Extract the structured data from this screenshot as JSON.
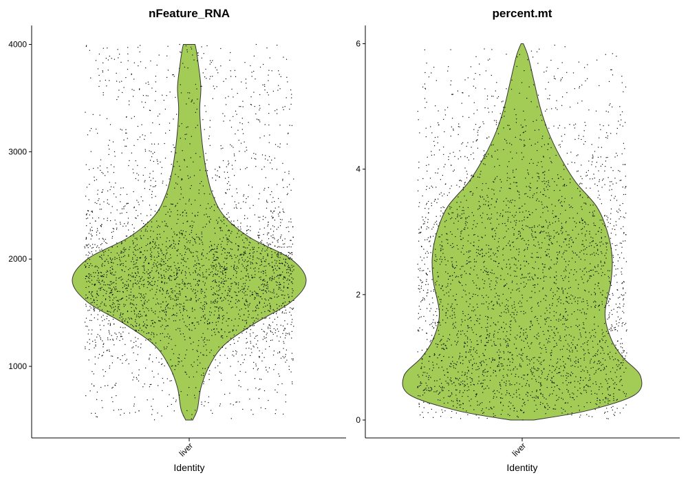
{
  "chart_data": [
    {
      "type": "violin",
      "title": "nFeature_RNA",
      "xlabel": "Identity",
      "ylabel": "",
      "categories": [
        "liver"
      ],
      "ylim": [
        500,
        4000
      ],
      "yticks": [
        1000,
        2000,
        3000,
        4000
      ],
      "ytick_labels": [
        "1000",
        "2000",
        "3000",
        "4000"
      ],
      "fill_color": "#a3cc57",
      "jitter_points": 3400,
      "density": [
        {
          "y": 500,
          "w": 0.03
        },
        {
          "y": 600,
          "w": 0.07
        },
        {
          "y": 800,
          "w": 0.1
        },
        {
          "y": 1000,
          "w": 0.17
        },
        {
          "y": 1200,
          "w": 0.3
        },
        {
          "y": 1400,
          "w": 0.56
        },
        {
          "y": 1600,
          "w": 0.87
        },
        {
          "y": 1800,
          "w": 1.0
        },
        {
          "y": 2000,
          "w": 0.87
        },
        {
          "y": 2200,
          "w": 0.52
        },
        {
          "y": 2400,
          "w": 0.3
        },
        {
          "y": 2600,
          "w": 0.2
        },
        {
          "y": 2800,
          "w": 0.15
        },
        {
          "y": 3000,
          "w": 0.12
        },
        {
          "y": 3200,
          "w": 0.1
        },
        {
          "y": 3400,
          "w": 0.09
        },
        {
          "y": 3600,
          "w": 0.1
        },
        {
          "y": 3800,
          "w": 0.08
        },
        {
          "y": 3950,
          "w": 0.06
        },
        {
          "y": 4000,
          "w": 0.05
        }
      ]
    },
    {
      "type": "violin",
      "title": "percent.mt",
      "xlabel": "Identity",
      "ylabel": "",
      "categories": [
        "liver"
      ],
      "ylim": [
        0,
        6
      ],
      "yticks": [
        0,
        2,
        4,
        6
      ],
      "ytick_labels": [
        "0",
        "2",
        "4",
        "6"
      ],
      "fill_color": "#a3cc57",
      "jitter_points": 3400,
      "density": [
        {
          "y": 0,
          "w": 0.1
        },
        {
          "y": 0.15,
          "w": 0.55
        },
        {
          "y": 0.4,
          "w": 0.95
        },
        {
          "y": 0.7,
          "w": 1.0
        },
        {
          "y": 1.0,
          "w": 0.85
        },
        {
          "y": 1.3,
          "w": 0.75
        },
        {
          "y": 1.7,
          "w": 0.7
        },
        {
          "y": 2.2,
          "w": 0.75
        },
        {
          "y": 2.6,
          "w": 0.76
        },
        {
          "y": 3.0,
          "w": 0.72
        },
        {
          "y": 3.4,
          "w": 0.63
        },
        {
          "y": 3.8,
          "w": 0.45
        },
        {
          "y": 4.2,
          "w": 0.32
        },
        {
          "y": 4.6,
          "w": 0.22
        },
        {
          "y": 5.0,
          "w": 0.15
        },
        {
          "y": 5.4,
          "w": 0.1
        },
        {
          "y": 5.8,
          "w": 0.05
        },
        {
          "y": 6.0,
          "w": 0.01
        }
      ]
    }
  ]
}
